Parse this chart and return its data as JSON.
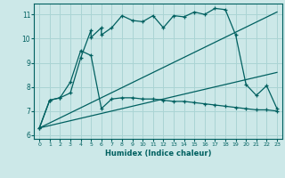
{
  "xlabel": "Humidex (Indice chaleur)",
  "bg_color": "#cce8e8",
  "line_color": "#006060",
  "grid_color": "#aad4d4",
  "xlim": [
    -0.5,
    23.5
  ],
  "ylim": [
    5.85,
    11.45
  ],
  "xticks": [
    0,
    1,
    2,
    3,
    4,
    5,
    6,
    7,
    8,
    9,
    10,
    11,
    12,
    13,
    14,
    15,
    16,
    17,
    18,
    19,
    20,
    21,
    22,
    23
  ],
  "yticks": [
    6,
    7,
    8,
    9,
    10,
    11
  ],
  "line1_x": [
    0,
    1,
    2,
    3,
    4,
    5,
    5,
    6,
    6,
    7,
    8,
    9,
    10,
    11,
    12,
    13,
    14,
    15,
    16,
    17,
    18,
    19,
    20,
    21,
    22,
    23
  ],
  "line1_y": [
    6.3,
    7.45,
    7.55,
    7.75,
    9.2,
    10.35,
    10.05,
    10.45,
    10.15,
    10.45,
    10.95,
    10.75,
    10.7,
    10.95,
    10.45,
    10.95,
    10.9,
    11.1,
    11.0,
    11.25,
    11.2,
    10.15,
    8.1,
    7.65,
    8.05,
    7.1
  ],
  "line2_x": [
    0,
    1,
    2,
    3,
    4,
    5,
    6,
    7,
    8,
    9,
    10,
    11,
    12,
    13,
    14,
    15,
    16,
    17,
    18,
    19,
    20,
    21,
    22,
    23
  ],
  "line2_y": [
    6.3,
    7.45,
    7.55,
    8.2,
    9.5,
    9.3,
    7.1,
    7.5,
    7.55,
    7.55,
    7.5,
    7.5,
    7.45,
    7.4,
    7.4,
    7.35,
    7.3,
    7.25,
    7.2,
    7.15,
    7.1,
    7.05,
    7.05,
    7.0
  ],
  "line3_x": [
    0,
    23
  ],
  "line3_y": [
    6.3,
    11.1
  ],
  "line4_x": [
    0,
    23
  ],
  "line4_y": [
    6.3,
    8.6
  ]
}
